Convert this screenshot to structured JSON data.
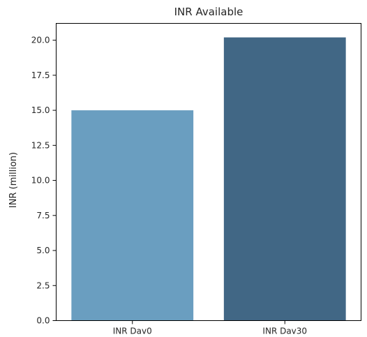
{
  "chart_data": {
    "type": "bar",
    "title": "INR Available",
    "xlabel": "",
    "ylabel": "INR (million)",
    "categories": [
      "INR Dav0",
      "INR Dav30"
    ],
    "values": [
      15.0,
      20.2
    ],
    "bar_colors": [
      "#6a9ec0",
      "#416785"
    ],
    "ylim": [
      0,
      21.2
    ],
    "yticks": [
      0.0,
      2.5,
      5.0,
      7.5,
      10.0,
      12.5,
      15.0,
      17.5,
      20.0
    ],
    "ytick_labels": [
      "0.0",
      "2.5",
      "5.0",
      "7.5",
      "10.0",
      "12.5",
      "15.0",
      "17.5",
      "20.0"
    ],
    "grid": false,
    "legend": "none"
  }
}
